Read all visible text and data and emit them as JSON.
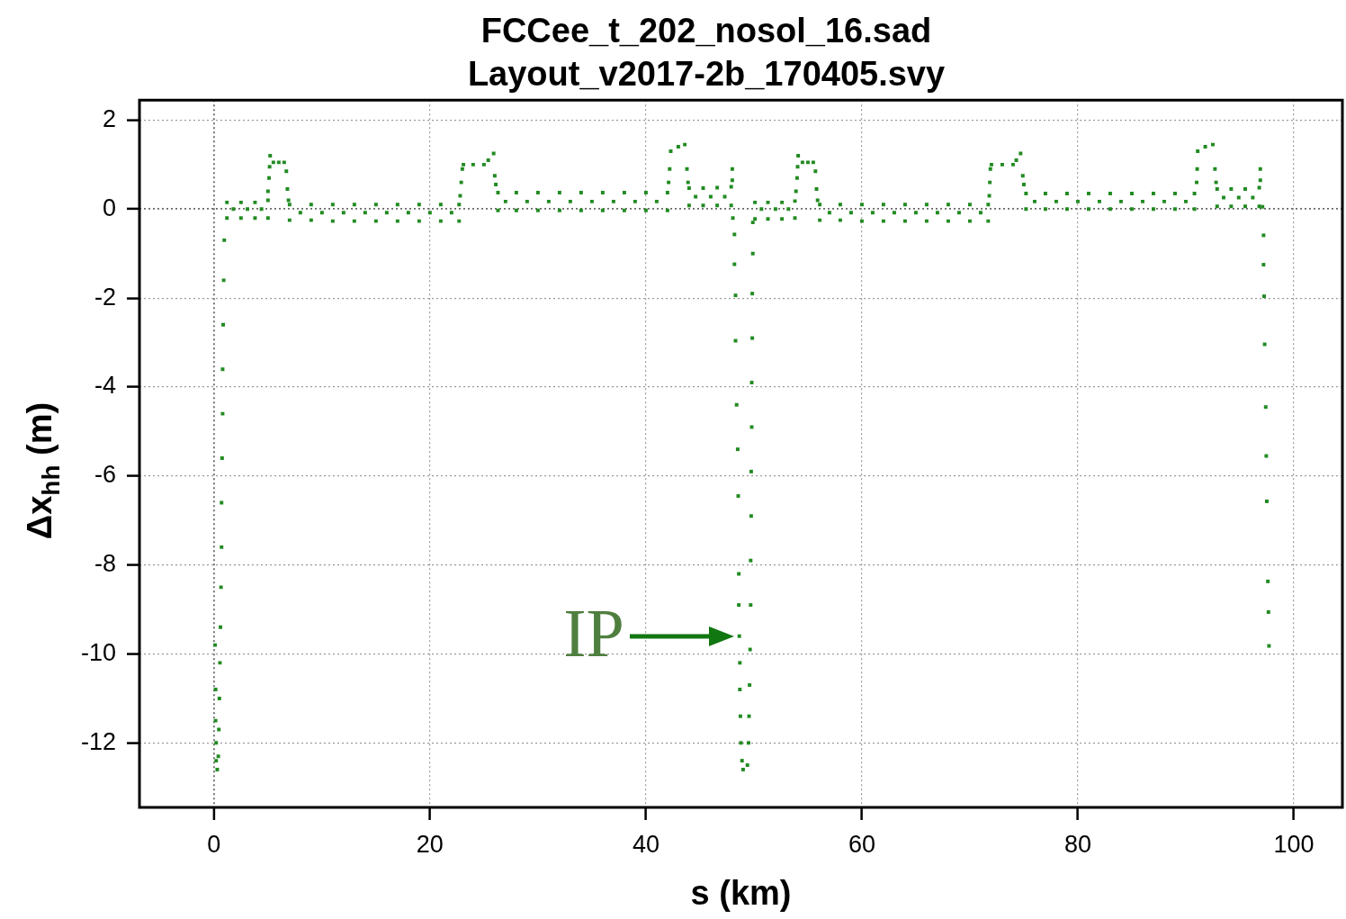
{
  "chart_data": {
    "type": "scatter",
    "title": "FCCee_t_202_nosol_16.sad",
    "subtitle": "Layout_v2017-2b_170405.svy",
    "xlabel": "s (km)",
    "ylabel": "Δx$_{hh}$ (m)",
    "xlim": [
      -6.9,
      104.5
    ],
    "ylim": [
      -13.45,
      2.45
    ],
    "xticks": [
      0,
      20,
      40,
      60,
      80,
      100
    ],
    "yticks": [
      -12,
      -10,
      -8,
      -6,
      -4,
      -2,
      0,
      2
    ],
    "grid": true,
    "marker": "square",
    "annotations": [
      {
        "text": "IP",
        "x": 48.65,
        "y": -9.6
      }
    ],
    "series": [
      {
        "color": "#228b22",
        "x": [
          0.1,
          0.15,
          0.15,
          0.2,
          0.2,
          0.3,
          0.4,
          0.45,
          0.5,
          0.55,
          0.6,
          0.65,
          0.7,
          0.7,
          0.75,
          0.8,
          0.8,
          0.85,
          0.9,
          0.95,
          1.2,
          2.5,
          3.8,
          5.0,
          1.2,
          2.5,
          3.8,
          5.0,
          1.8,
          3.1,
          4.4,
          5.0,
          5.1,
          5.15,
          5.2,
          5.5,
          6.0,
          6.5,
          6.7,
          6.8,
          6.9,
          7,
          9,
          11,
          13,
          15,
          17,
          19,
          21,
          22.7,
          7,
          9,
          11,
          13,
          15,
          17,
          19,
          21,
          22.7,
          8,
          10,
          12,
          14,
          16,
          18,
          20,
          22,
          22.8,
          22.9,
          23.0,
          23.1,
          24.0,
          25.0,
          25.4,
          25.9,
          26.0,
          26.1,
          26.3,
          28,
          30,
          32,
          34,
          36,
          38,
          40,
          42,
          26.3,
          28,
          30,
          32,
          34,
          36,
          38,
          40,
          42,
          27,
          29,
          31,
          33,
          35,
          37,
          39,
          41,
          42.1,
          42.2,
          42.3,
          43.0,
          43.6,
          43.8,
          43.9,
          44,
          45.3,
          46.6,
          47.9,
          44,
          45.3,
          46.6,
          47.9,
          44.6,
          46,
          47.3,
          48.0,
          48.0,
          48.05,
          48.2,
          48.2,
          48.3,
          48.3,
          48.4,
          48.5,
          48.55,
          48.6,
          48.6,
          48.65,
          48.7,
          48.7,
          48.75,
          48.8,
          48.9,
          49.0,
          49.9,
          49.9,
          49.85,
          49.85,
          49.8,
          49.8,
          49.75,
          49.75,
          49.7,
          49.7,
          49.65,
          49.6,
          49.55,
          49.5,
          49.4,
          50.1,
          51.3,
          52.6,
          53.8,
          50.1,
          51.3,
          52.6,
          53.8,
          50.7,
          52,
          53.2,
          53.9,
          54.0,
          54.05,
          54.1,
          54.5,
          55.0,
          55.5,
          55.7,
          55.8,
          55.9,
          56.1,
          58,
          60,
          62,
          64,
          66,
          68,
          70,
          71.7,
          56.1,
          58,
          60,
          62,
          64,
          66,
          68,
          70,
          71.7,
          57,
          59,
          61,
          63,
          65,
          67,
          69,
          71,
          71.8,
          71.85,
          71.9,
          72.0,
          73,
          74,
          74.3,
          74.7,
          74.9,
          75.0,
          75.2,
          77,
          79,
          81,
          83,
          85,
          87,
          89,
          90.8,
          75.2,
          77,
          79,
          81,
          83,
          85,
          87,
          89,
          90.8,
          76,
          78,
          80,
          82,
          84,
          86,
          88,
          90,
          91.0,
          91.05,
          91.1,
          91.8,
          92.5,
          92.7,
          92.8,
          92.9,
          94.2,
          95.5,
          96.8,
          92.9,
          94.2,
          95.5,
          96.8,
          93.5,
          94.9,
          96.2,
          96.9,
          96.9,
          97.1,
          97.2,
          97.2,
          97.25,
          97.3,
          97.4,
          97.45,
          97.5,
          97.6,
          97.65,
          97.7
        ],
        "values": [
          -9.8,
          -10.8,
          -11.5,
          -12.0,
          -12.4,
          -12.6,
          -12.3,
          -11.7,
          -11.0,
          -10.2,
          -9.4,
          -8.5,
          -7.6,
          -6.6,
          -5.6,
          -4.6,
          -3.6,
          -2.6,
          -1.6,
          -0.7,
          0.15,
          0.15,
          0.15,
          0.2,
          -0.2,
          -0.2,
          -0.2,
          -0.2,
          0,
          0,
          0,
          0.4,
          0.7,
          0.95,
          1.2,
          1.05,
          1.05,
          1.05,
          0.85,
          0.45,
          0.2,
          0.1,
          0.1,
          0.1,
          0.1,
          0.1,
          0.1,
          0.1,
          0.1,
          0.1,
          -0.25,
          -0.25,
          -0.27,
          -0.27,
          -0.27,
          -0.27,
          -0.27,
          -0.27,
          -0.27,
          -0.08,
          -0.08,
          -0.08,
          -0.08,
          -0.08,
          -0.08,
          -0.08,
          -0.08,
          0.3,
          0.6,
          0.9,
          1.0,
          1.0,
          1.0,
          1.1,
          1.25,
          0.75,
          0.55,
          0.37,
          0.37,
          0.37,
          0.37,
          0.37,
          0.37,
          0.37,
          0.37,
          0.37,
          -0.03,
          -0.03,
          -0.03,
          -0.03,
          -0.03,
          -0.03,
          -0.03,
          -0.03,
          -0.03,
          0.17,
          0.17,
          0.17,
          0.17,
          0.17,
          0.17,
          0.17,
          0.17,
          0.6,
          0.9,
          1.3,
          1.4,
          1.45,
          0.9,
          0.6,
          0.47,
          0.47,
          0.48,
          0.5,
          0.08,
          0.08,
          0.08,
          0.08,
          0.28,
          0.28,
          0.28,
          0.9,
          0.65,
          -0.2,
          -0.57,
          -1.24,
          -1.94,
          -2.96,
          -4.4,
          -5.4,
          -6.45,
          -8.2,
          -8.9,
          -9.6,
          -10.2,
          -10.8,
          -11.4,
          -12.0,
          -12.4,
          -12.6,
          -0.3,
          -1.0,
          -1.9,
          -2.9,
          -3.9,
          -4.9,
          -5.9,
          -6.9,
          -7.9,
          -8.9,
          -9.9,
          -10.7,
          -11.4,
          -12.0,
          -12.5,
          0.15,
          0.15,
          0.15,
          0.18,
          -0.22,
          -0.22,
          -0.22,
          -0.2,
          0,
          0,
          0,
          0.4,
          0.7,
          0.95,
          1.2,
          1.05,
          1.05,
          1.05,
          0.85,
          0.45,
          0.2,
          0.1,
          0.1,
          0.1,
          0.1,
          0.1,
          0.1,
          0.1,
          0.1,
          0.1,
          -0.25,
          -0.25,
          -0.27,
          -0.27,
          -0.27,
          -0.27,
          -0.27,
          -0.27,
          -0.27,
          -0.08,
          -0.08,
          -0.08,
          -0.08,
          -0.08,
          -0.08,
          -0.08,
          -0.08,
          0.3,
          0.6,
          0.9,
          1.0,
          1.0,
          1.0,
          1.1,
          1.25,
          0.75,
          0.55,
          0.35,
          0.35,
          0.35,
          0.35,
          0.35,
          0.35,
          0.35,
          0.35,
          0.35,
          0.0,
          0.0,
          0.0,
          0.0,
          0.0,
          0.0,
          0.0,
          0.0,
          0.0,
          0.17,
          0.17,
          0.17,
          0.17,
          0.17,
          0.17,
          0.17,
          0.17,
          0.6,
          0.9,
          1.3,
          1.4,
          1.45,
          0.9,
          0.6,
          0.45,
          0.45,
          0.45,
          0.48,
          0.06,
          0.06,
          0.06,
          0.06,
          0.26,
          0.26,
          0.26,
          0.9,
          0.65,
          0.05,
          -0.59,
          -1.25,
          -1.96,
          -3.04,
          -4.45,
          -5.55,
          -6.57,
          -8.37,
          -9.06,
          -9.82
        ]
      }
    ]
  }
}
